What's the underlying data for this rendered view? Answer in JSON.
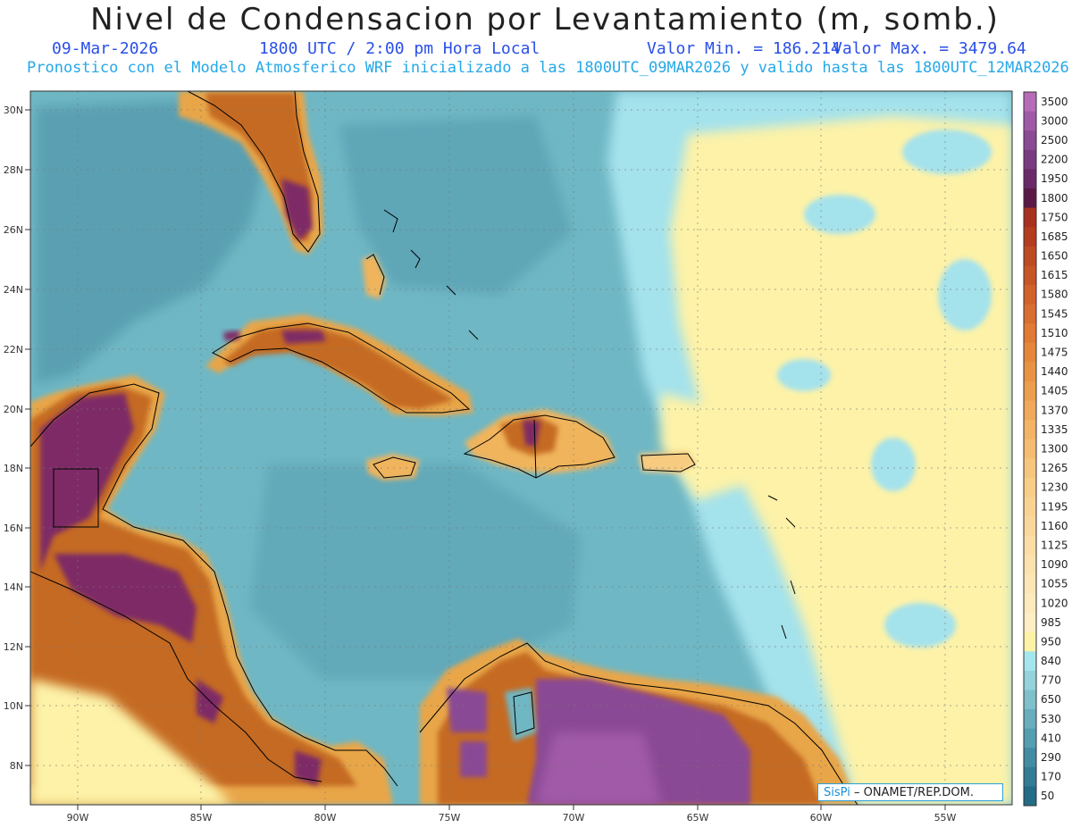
{
  "header": {
    "title": "Nivel de Condensacion por Levantamiento (m, somb.)",
    "date": "09-Mar-2026",
    "time": "1800 UTC / 2:00 pm Hora Local",
    "vmin": "Valor Min. = 186.214",
    "vmax": "Valor Max. = 3479.64",
    "description": "Pronostico con el Modelo Atmosferico WRF inicializado a las 1800UTC_09MAR2026 y valido hasta las  1800UTC_12MAR2026"
  },
  "map": {
    "lat_ticks": [
      "30N",
      "28N",
      "26N",
      "24N",
      "22N",
      "20N",
      "18N",
      "16N",
      "14N",
      "12N",
      "10N",
      "8N"
    ],
    "lon_ticks": [
      "90W",
      "85W",
      "80W",
      "75W",
      "70W",
      "65W",
      "60W",
      "55W"
    ]
  },
  "colorbar": {
    "labels": [
      "3500",
      "3000",
      "2500",
      "2200",
      "1950",
      "1800",
      "1750",
      "1685",
      "1650",
      "1615",
      "1580",
      "1545",
      "1510",
      "1475",
      "1440",
      "1405",
      "1370",
      "1335",
      "1300",
      "1265",
      "1230",
      "1195",
      "1160",
      "1125",
      "1090",
      "1055",
      "1020",
      "985",
      "950",
      "840",
      "770",
      "650",
      "530",
      "410",
      "290",
      "170",
      "50"
    ],
    "colors": [
      "#b86bb8",
      "#a05aa8",
      "#8a4a94",
      "#7a3a80",
      "#6a2a6a",
      "#5a1a45",
      "#a8301e",
      "#b33d1e",
      "#bd4a22",
      "#c75526",
      "#d0622a",
      "#d86e30",
      "#e07a34",
      "#e4873c",
      "#e89344",
      "#ec9e4e",
      "#f0a95a",
      "#f3b466",
      "#f5bd72",
      "#f7c67e",
      "#f8cd88",
      "#f9d392",
      "#fad89c",
      "#fbdda5",
      "#fce2ae",
      "#fde6b6",
      "#fdeabd",
      "#fdeec6",
      "#fdf3a6",
      "#a5e6ee",
      "#95d2dc",
      "#7fc0cc",
      "#68aebd",
      "#559db0",
      "#438ca3",
      "#337c96",
      "#236b86"
    ]
  },
  "credit": {
    "brand": "SisPi",
    "text": "– ONAMET/REP.DOM."
  }
}
